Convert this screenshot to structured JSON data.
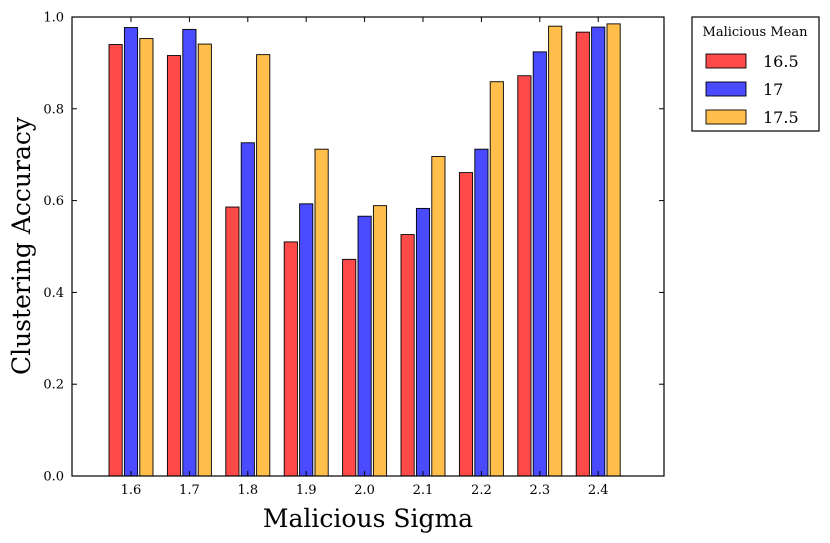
{
  "chart_data": {
    "type": "bar",
    "title": "",
    "xlabel": "Malicious Sigma",
    "ylabel": "Clustering Accuracy",
    "categories": [
      "1.6",
      "1.7",
      "1.8",
      "1.9",
      "2.0",
      "2.1",
      "2.2",
      "2.3",
      "2.4"
    ],
    "ylim": [
      0.0,
      1.0
    ],
    "yticks": [
      "0.0",
      "0.2",
      "0.4",
      "0.6",
      "0.8",
      "1.0"
    ],
    "grid": false,
    "legend": {
      "title": "Malicious Mean",
      "placement": "outside-top-right"
    },
    "series": [
      {
        "name": "16.5",
        "color": "#ff4a4a",
        "values": [
          0.94,
          0.916,
          0.586,
          0.51,
          0.472,
          0.526,
          0.661,
          0.872,
          0.967
        ]
      },
      {
        "name": "17",
        "color": "#4a4aff",
        "values": [
          0.977,
          0.973,
          0.726,
          0.593,
          0.566,
          0.583,
          0.712,
          0.924,
          0.978
        ]
      },
      {
        "name": "17.5",
        "color": "#ffbf4a",
        "values": [
          0.953,
          0.941,
          0.918,
          0.712,
          0.589,
          0.696,
          0.859,
          0.98,
          0.985
        ]
      }
    ]
  }
}
